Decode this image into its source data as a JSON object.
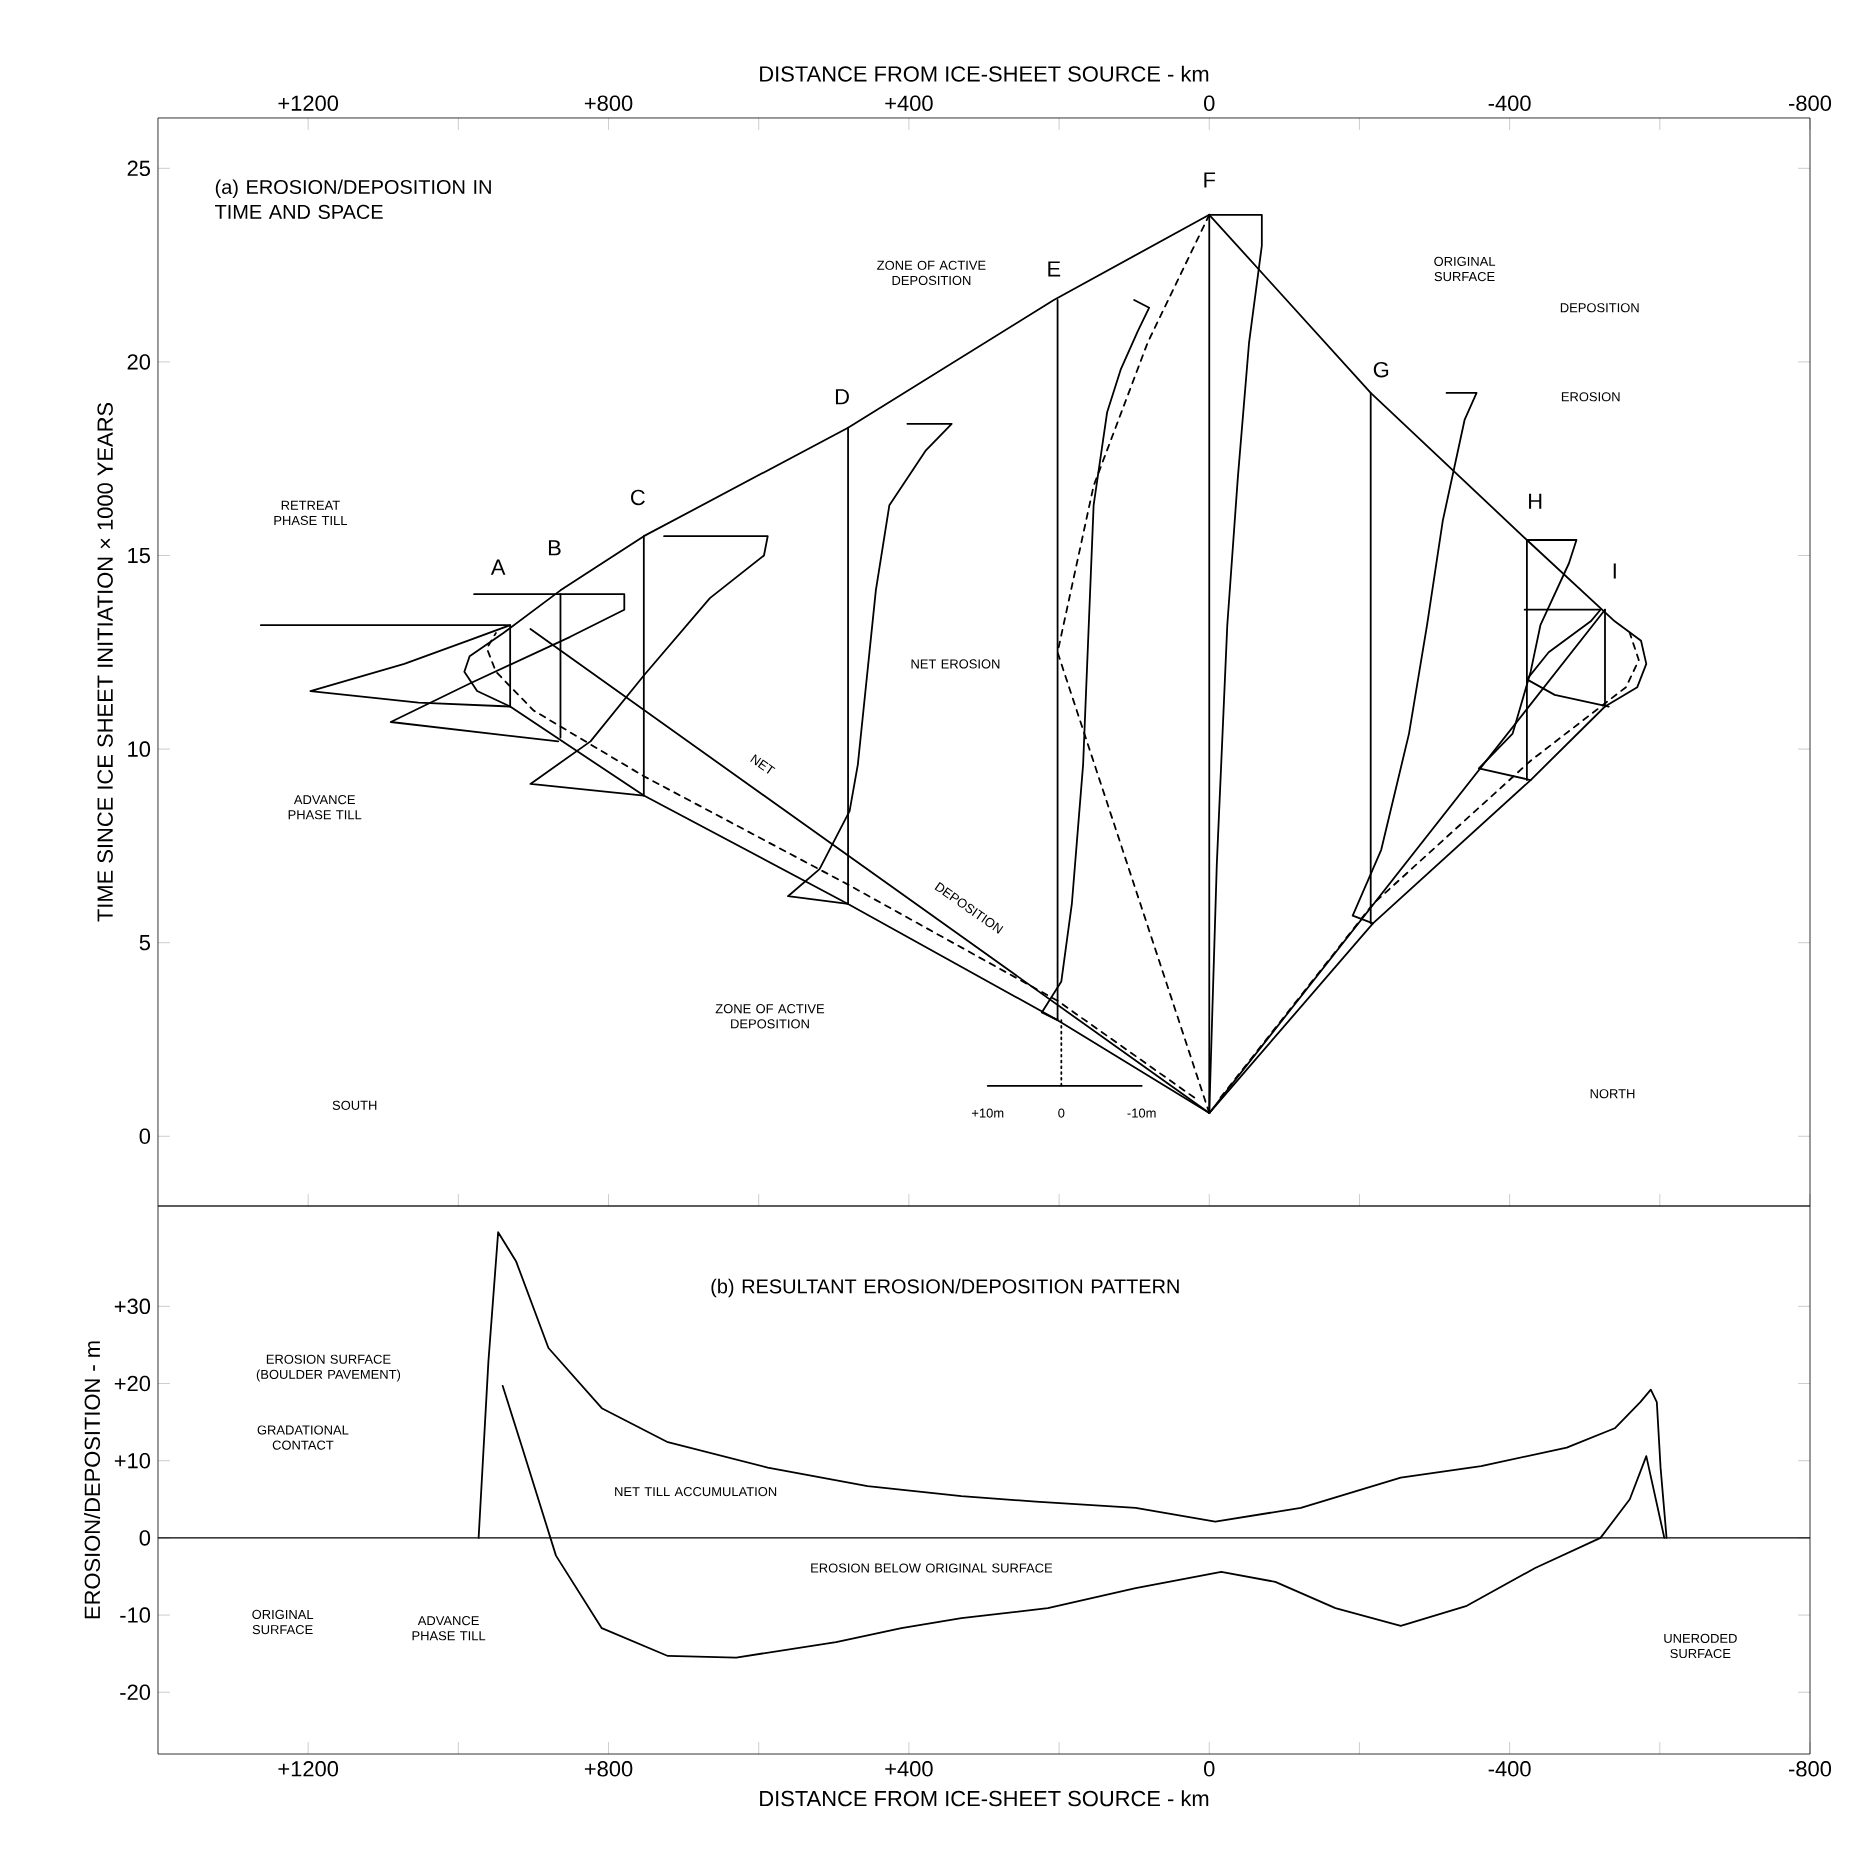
{
  "chart_data": [
    {
      "type": "line",
      "title": "(a) EROSION/DEPOSITION IN TIME AND SPACE",
      "ylabel": "TIME SINCE ICE SHEET INITIATION × 1000 YEARS",
      "xlabel": "DISTANCE FROM ICE-SHEET SOURCE - km",
      "xlim": [
        1400,
        -800
      ],
      "xticks": [
        {
          "value": 1200,
          "label": "+1200"
        },
        {
          "value": 1000,
          "label": null
        },
        {
          "value": 800,
          "label": "+800"
        },
        {
          "value": 600,
          "label": null
        },
        {
          "value": 400,
          "label": "+400"
        },
        {
          "value": 200,
          "label": null
        },
        0,
        {
          "value": -200,
          "label": null
        },
        -400,
        {
          "value": -600,
          "label": null
        },
        -800
      ],
      "ylim": [
        -1.8,
        26.3
      ],
      "yticks": [
        0,
        5,
        10,
        15,
        20,
        25
      ],
      "series": [
        {
          "color": "#000000",
          "x": [
            0,
            207,
            481,
            753,
            864,
            940,
            985,
            992,
            975,
            931,
            753,
            481,
            202,
            0
          ],
          "values": [
            23.8,
            21.6,
            18.3,
            15.5,
            14.1,
            13.0,
            12.4,
            12.0,
            11.5,
            11.1,
            8.8,
            6.0,
            3.0,
            0.6
          ]
        },
        {
          "color": "#000000",
          "x": [
            0,
            -215,
            -423,
            -540,
            -575,
            -582,
            -570,
            -527,
            -428,
            -218,
            0
          ],
          "values": [
            23.8,
            19.2,
            15.4,
            13.3,
            12.8,
            12.2,
            11.6,
            11.1,
            9.2,
            5.5,
            0.6
          ]
        },
        {
          "color": "#000000",
          "line_style": "dashed",
          "x": [
            20,
            202,
            481,
            753,
            900,
            950,
            962,
            950
          ],
          "values": [
            1.0,
            3.5,
            6.5,
            9.3,
            11.0,
            12.0,
            12.6,
            13.0
          ]
        },
        {
          "color": "#000000",
          "line_style": "dashed",
          "x": [
            -15,
            -218,
            -428,
            -555,
            -572,
            -560
          ],
          "values": [
            1.0,
            6.0,
            9.7,
            11.6,
            12.3,
            13.0
          ]
        },
        {
          "color": "#000000",
          "line_style": "dashed",
          "x": [
            0,
            82,
            154,
            202,
            0
          ],
          "values": [
            23.8,
            20.5,
            16.8,
            12.5,
            0.6
          ]
        },
        {
          "color": "#000000",
          "x": [
            904,
            0
          ],
          "values": [
            13.1,
            0.6
          ]
        },
        {
          "color": "#000000",
          "x": [
            -527,
            0
          ],
          "values": [
            13.6,
            0.6
          ]
        },
        {
          "color": "#000000",
          "x": [
            931,
            931
          ],
          "values": [
            11.1,
            13.2
          ]
        },
        {
          "color": "#000000",
          "x": [
            864,
            864
          ],
          "values": [
            10.3,
            14.0
          ]
        },
        {
          "color": "#000000",
          "x": [
            753,
            753
          ],
          "values": [
            8.8,
            15.5
          ]
        },
        {
          "color": "#000000",
          "x": [
            481,
            481
          ],
          "values": [
            6.0,
            18.3
          ]
        },
        {
          "color": "#000000",
          "x": [
            202,
            202
          ],
          "values": [
            3.0,
            21.6
          ]
        },
        {
          "color": "#000000",
          "x": [
            0,
            0
          ],
          "values": [
            0.6,
            23.8
          ]
        },
        {
          "color": "#000000",
          "x": [
            -215,
            -215
          ],
          "values": [
            5.5,
            19.2
          ]
        },
        {
          "color": "#000000",
          "x": [
            -423,
            -423
          ],
          "values": [
            9.2,
            15.4
          ]
        },
        {
          "color": "#000000",
          "x": [
            -527,
            -527
          ],
          "values": [
            11.1,
            13.6
          ]
        },
        {
          "color": "#000000",
          "line_style": "dotted",
          "x": [
            197,
            197
          ],
          "values": [
            3.0,
            1.3
          ]
        },
        {
          "color": "#000000",
          "x": [
            295,
            90
          ],
          "values": [
            1.3,
            1.3
          ]
        },
        {
          "color": "#000000",
          "x": [
            1263,
            931,
            987,
            1072,
            1197,
            1053,
            931
          ],
          "values": [
            13.2,
            13.2,
            12.8,
            12.2,
            11.5,
            11.2,
            11.1
          ]
        },
        {
          "color": "#000000",
          "x": [
            979,
            779,
            779,
            851,
            984,
            1090,
            867
          ],
          "values": [
            14.0,
            14.0,
            13.6,
            12.9,
            11.7,
            10.7,
            10.2
          ]
        },
        {
          "color": "#000000",
          "x": [
            726,
            588,
            593,
            665,
            753,
            824,
            904,
            753
          ],
          "values": [
            15.5,
            15.5,
            15.0,
            13.9,
            11.9,
            10.2,
            9.1,
            8.8
          ]
        },
        {
          "color": "#000000",
          "x": [
            402,
            343,
            378,
            426,
            444,
            468,
            479,
            519,
            561,
            481
          ],
          "values": [
            18.4,
            18.4,
            17.7,
            16.3,
            14.1,
            9.6,
            8.4,
            6.9,
            6.2,
            6.0
          ]
        },
        {
          "color": "#000000",
          "x": [
            100,
            80,
            95,
            118,
            136,
            154,
            168,
            183,
            197,
            223,
            202
          ],
          "values": [
            21.6,
            21.4,
            20.8,
            19.8,
            18.7,
            16.3,
            9.6,
            6.0,
            4.0,
            3.2,
            3.0
          ]
        },
        {
          "color": "#000000",
          "x": [
            0,
            -70,
            -70,
            -53,
            -38,
            -24,
            -10,
            0
          ],
          "values": [
            23.8,
            23.8,
            23.0,
            20.5,
            17.0,
            13.2,
            7.0,
            0.6
          ]
        },
        {
          "color": "#000000",
          "x": [
            -316,
            -356,
            -340,
            -311,
            -290,
            -266,
            -229,
            -191,
            -218
          ],
          "values": [
            19.2,
            19.2,
            18.5,
            15.9,
            13.2,
            10.4,
            7.4,
            5.7,
            5.5
          ]
        },
        {
          "color": "#000000",
          "x": [
            -423,
            -489,
            -479,
            -441,
            -428,
            -404,
            -359,
            -428
          ],
          "values": [
            15.4,
            15.4,
            14.8,
            13.2,
            12.0,
            10.4,
            9.5,
            9.2
          ]
        },
        {
          "color": "#000000",
          "x": [
            -420,
            -521,
            -508,
            -452,
            -423,
            -460,
            -532
          ],
          "values": [
            13.6,
            13.6,
            13.3,
            12.5,
            11.8,
            11.4,
            11.1
          ]
        }
      ],
      "annotations": [
        "A",
        "B",
        "C",
        "D",
        "E",
        "F",
        "G",
        "H",
        "I",
        "RETREAT PHASE TILL",
        "ADVANCE PHASE TILL",
        "NET EROSION",
        "NET",
        "DEPOSITION",
        "ZONE OF ACTIVE DEPOSITION",
        "ZONE OF ACTIVE DEPOSITION",
        "ORIGINAL SURFACE",
        "DEPOSITION",
        "EROSION",
        "SOUTH",
        "NORTH",
        "+10m",
        "0",
        "-10m"
      ]
    },
    {
      "type": "line",
      "title": "(b) RESULTANT EROSION/DEPOSITION PATTERN",
      "xlabel": "DISTANCE FROM ICE-SHEET SOURCE - km",
      "ylabel": "EROSION/DEPOSITION - m",
      "xlim": [
        1400,
        -800
      ],
      "xticks": [
        {
          "value": 1200,
          "label": "+1200"
        },
        {
          "value": 1000,
          "label": null
        },
        {
          "value": 800,
          "label": "+800"
        },
        {
          "value": 600,
          "label": null
        },
        {
          "value": 400,
          "label": "+400"
        },
        {
          "value": 200,
          "label": null
        },
        0,
        {
          "value": -200,
          "label": null
        },
        -400,
        {
          "value": -600,
          "label": null
        },
        -800
      ],
      "ylim": [
        -28,
        43
      ],
      "yticks": [
        {
          "value": 30,
          "label": "+30"
        },
        {
          "value": 20,
          "label": "+20"
        },
        {
          "value": 10,
          "label": "+10"
        },
        0,
        -10,
        -20
      ],
      "ref_lines": [
        {
          "axis": "y",
          "value": 0
        }
      ],
      "series": [
        {
          "color": "#000000",
          "x": [
            973,
            960,
            947,
            923,
            880,
            809,
            721,
            588,
            455,
            330,
            231,
            98,
            -8,
            -122,
            -255,
            -362,
            -476,
            -540,
            -574,
            -588,
            -596,
            -601,
            -609
          ],
          "values": [
            0,
            22.8,
            39.6,
            35.8,
            24.6,
            16.8,
            12.4,
            9.1,
            6.7,
            5.4,
            4.7,
            3.9,
            2.1,
            3.9,
            7.8,
            9.3,
            11.7,
            14.2,
            17.6,
            19.2,
            17.6,
            9.1,
            0
          ]
        },
        {
          "color": "#000000",
          "x": [
            941,
            915,
            870,
            809,
            721,
            630,
            497,
            410,
            330,
            215,
            98,
            -16,
            -88,
            -168,
            -255,
            -343,
            -434,
            -521,
            -560,
            -582,
            -606
          ],
          "values": [
            19.7,
            11.7,
            -2.3,
            -11.7,
            -15.3,
            -15.5,
            -13.5,
            -11.7,
            -10.4,
            -9.1,
            -6.5,
            -4.4,
            -5.7,
            -9.1,
            -11.4,
            -8.8,
            -3.9,
            0,
            5,
            10.6,
            0
          ]
        }
      ],
      "annotations": [
        "EROSION SURFACE (BOULDER PAVEMENT)",
        "GRADATIONAL CONTACT",
        "NET TILL ACCUMULATION",
        "ORIGINAL SURFACE",
        "ADVANCE PHASE TILL",
        "EROSION BELOW ORIGINAL SURFACE",
        "UNERODED SURFACE"
      ]
    }
  ]
}
